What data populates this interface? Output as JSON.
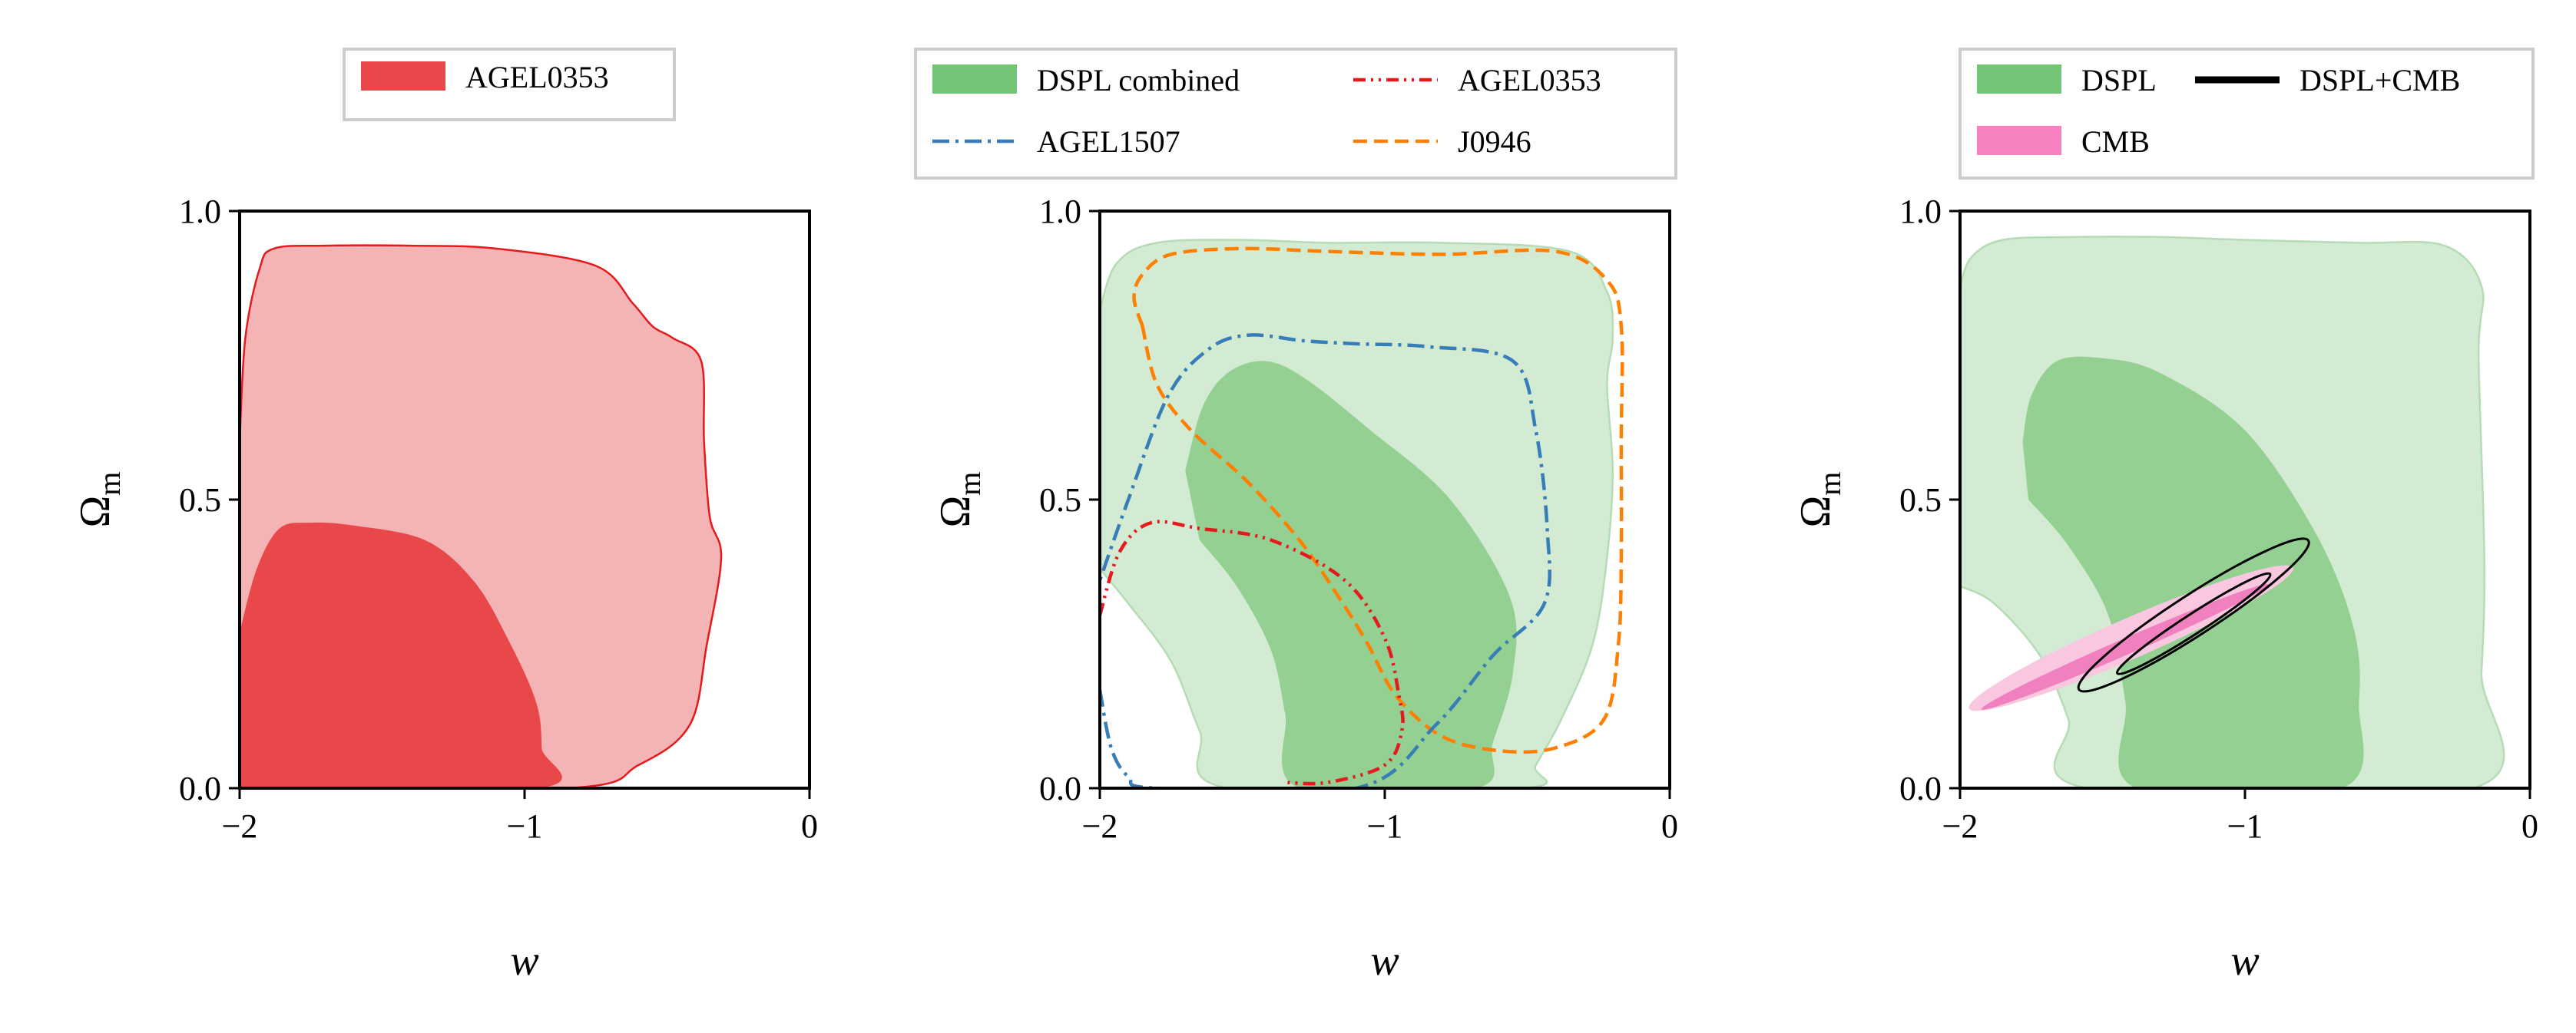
{
  "figure": {
    "type": "contour",
    "panels_count": 3
  },
  "colors": {
    "red_light": "#f4b3b5",
    "red_dark": "#e9484b",
    "red_line": "#e41a1c",
    "green_light": "#d2ebd2",
    "green_dark": "#94d092",
    "green_patch": "#74c476",
    "blue_line": "#377eb8",
    "orange_line": "#ff7f00",
    "pink_light": "#f9c8e0",
    "pink_dark": "#f180be",
    "pink_patch": "#f781bf",
    "black": "#000000",
    "legend_border": "#cccccc"
  },
  "chart_data": [
    {
      "type": "contour",
      "xlabel": "w",
      "ylabel_main": "Ω",
      "ylabel_sub": "m",
      "xlim": [
        -2,
        0
      ],
      "ylim": [
        0,
        1
      ],
      "xticks": [
        "−2",
        "−1",
        "0"
      ],
      "yticks": [
        "0.0",
        "0.5",
        "1.0"
      ],
      "legend": [
        {
          "label": "AGEL0353",
          "style": "patch",
          "color": "red_dark"
        }
      ],
      "regions": [
        {
          "name": "agel0353-95",
          "fill": "red_light",
          "stroke": "red_line",
          "points": [
            [
              -2,
              0.6
            ],
            [
              -1.98,
              0.78
            ],
            [
              -1.93,
              0.9
            ],
            [
              -1.88,
              0.935
            ],
            [
              -1.7,
              0.94
            ],
            [
              -1.4,
              0.94
            ],
            [
              -1.1,
              0.935
            ],
            [
              -0.75,
              0.905
            ],
            [
              -0.62,
              0.84
            ],
            [
              -0.55,
              0.8
            ],
            [
              -0.48,
              0.78
            ],
            [
              -0.38,
              0.74
            ],
            [
              -0.37,
              0.6
            ],
            [
              -0.35,
              0.47
            ],
            [
              -0.31,
              0.4
            ],
            [
              -0.36,
              0.25
            ],
            [
              -0.42,
              0.11
            ],
            [
              -0.6,
              0.04
            ],
            [
              -0.85,
              0
            ],
            [
              -2,
              0
            ]
          ]
        },
        {
          "name": "agel0353-68",
          "fill": "red_dark",
          "stroke": "none",
          "points": [
            [
              -2,
              0.27
            ],
            [
              -1.94,
              0.38
            ],
            [
              -1.86,
              0.45
            ],
            [
              -1.75,
              0.46
            ],
            [
              -1.6,
              0.455
            ],
            [
              -1.35,
              0.43
            ],
            [
              -1.18,
              0.36
            ],
            [
              -1.06,
              0.26
            ],
            [
              -0.96,
              0.15
            ],
            [
              -0.94,
              0.07
            ],
            [
              -0.95,
              0
            ],
            [
              -2,
              0
            ]
          ]
        }
      ],
      "lines": []
    },
    {
      "type": "contour",
      "xlabel": "w",
      "ylabel_main": "Ω",
      "ylabel_sub": "m",
      "xlim": [
        -2,
        0
      ],
      "ylim": [
        0,
        1
      ],
      "xticks": [
        "−2",
        "−1",
        "0"
      ],
      "yticks": [
        "0.0",
        "0.5",
        "1.0"
      ],
      "legend": [
        {
          "label": "DSPL combined",
          "style": "patch",
          "color": "green_patch"
        },
        {
          "label": "AGEL1507",
          "style": "dashdot",
          "color": "blue_line"
        },
        {
          "label": "AGEL0353",
          "style": "dashdotdot",
          "color": "red_line"
        },
        {
          "label": "J0946",
          "style": "dashed",
          "color": "orange_line"
        }
      ],
      "regions": [
        {
          "name": "dspl-combined-95",
          "fill": "green_light",
          "stroke": "#b5dcb4",
          "points": [
            [
              -2,
              0.83
            ],
            [
              -1.94,
              0.91
            ],
            [
              -1.8,
              0.945
            ],
            [
              -1.5,
              0.95
            ],
            [
              -1.2,
              0.945
            ],
            [
              -0.8,
              0.945
            ],
            [
              -0.35,
              0.93
            ],
            [
              -0.22,
              0.86
            ],
            [
              -0.2,
              0.78
            ],
            [
              -0.22,
              0.7
            ],
            [
              -0.2,
              0.55
            ],
            [
              -0.22,
              0.4
            ],
            [
              -0.27,
              0.25
            ],
            [
              -0.38,
              0.12
            ],
            [
              -0.47,
              0.04
            ],
            [
              -0.52,
              0
            ],
            [
              -1.55,
              0
            ],
            [
              -1.65,
              0.1
            ],
            [
              -1.75,
              0.22
            ],
            [
              -1.9,
              0.32
            ],
            [
              -2,
              0.38
            ]
          ]
        },
        {
          "name": "dspl-combined-68",
          "fill": "green_dark",
          "stroke": "none",
          "points": [
            [
              -1.7,
              0.55
            ],
            [
              -1.64,
              0.66
            ],
            [
              -1.55,
              0.72
            ],
            [
              -1.42,
              0.74
            ],
            [
              -1.28,
              0.71
            ],
            [
              -1.05,
              0.62
            ],
            [
              -0.77,
              0.5
            ],
            [
              -0.56,
              0.33
            ],
            [
              -0.55,
              0.2
            ],
            [
              -0.62,
              0.08
            ],
            [
              -0.68,
              0
            ],
            [
              -1.3,
              0
            ],
            [
              -1.35,
              0.13
            ],
            [
              -1.4,
              0.24
            ],
            [
              -1.52,
              0.35
            ],
            [
              -1.65,
              0.43
            ]
          ]
        }
      ],
      "lines": [
        {
          "name": "j0946-contour",
          "color": "orange_line",
          "dash": "dashed",
          "points": [
            [
              -1.85,
              0.8
            ],
            [
              -1.88,
              0.85
            ],
            [
              -1.85,
              0.89
            ],
            [
              -1.75,
              0.925
            ],
            [
              -1.5,
              0.935
            ],
            [
              -1.2,
              0.93
            ],
            [
              -0.8,
              0.925
            ],
            [
              -0.4,
              0.93
            ],
            [
              -0.22,
              0.88
            ],
            [
              -0.17,
              0.8
            ],
            [
              -0.17,
              0.6
            ],
            [
              -0.17,
              0.4
            ],
            [
              -0.18,
              0.25
            ],
            [
              -0.23,
              0.12
            ],
            [
              -0.4,
              0.07
            ],
            [
              -0.6,
              0.065
            ],
            [
              -0.8,
              0.09
            ],
            [
              -0.96,
              0.16
            ],
            [
              -1.06,
              0.25
            ],
            [
              -1.16,
              0.33
            ],
            [
              -1.3,
              0.43
            ],
            [
              -1.48,
              0.53
            ],
            [
              -1.68,
              0.62
            ],
            [
              -1.8,
              0.7
            ],
            [
              -1.85,
              0.8
            ]
          ]
        },
        {
          "name": "agel1507-contour",
          "color": "blue_line",
          "dash": "dashdot",
          "points": [
            [
              -2,
              0.17
            ],
            [
              -1.96,
              0.07
            ],
            [
              -1.9,
              0.02
            ],
            [
              -1.8,
              0
            ],
            [
              -1.1,
              0
            ],
            [
              -0.82,
              0.11
            ],
            [
              -0.62,
              0.23
            ],
            [
              -0.44,
              0.32
            ],
            [
              -0.43,
              0.45
            ],
            [
              -0.47,
              0.62
            ],
            [
              -0.55,
              0.74
            ],
            [
              -0.85,
              0.765
            ],
            [
              -1.1,
              0.77
            ],
            [
              -1.28,
              0.775
            ],
            [
              -1.48,
              0.785
            ],
            [
              -1.62,
              0.76
            ],
            [
              -1.76,
              0.68
            ],
            [
              -1.9,
              0.5
            ],
            [
              -2,
              0.36
            ]
          ]
        },
        {
          "name": "agel0353-contour",
          "color": "red_line",
          "dash": "dashdotdot",
          "points": [
            [
              -2,
              0.3
            ],
            [
              -1.93,
              0.41
            ],
            [
              -1.82,
              0.46
            ],
            [
              -1.65,
              0.45
            ],
            [
              -1.4,
              0.43
            ],
            [
              -1.14,
              0.36
            ],
            [
              -1.0,
              0.26
            ],
            [
              -0.95,
              0.16
            ],
            [
              -0.94,
              0.1
            ],
            [
              -1.0,
              0.04
            ],
            [
              -1.2,
              0.01
            ],
            [
              -1.35,
              0.01
            ]
          ]
        }
      ]
    },
    {
      "type": "contour",
      "xlabel": "w",
      "ylabel_main": "Ω",
      "ylabel_sub": "m",
      "xlim": [
        -2,
        0
      ],
      "ylim": [
        0,
        1
      ],
      "xticks": [
        "−2",
        "−1",
        "0"
      ],
      "yticks": [
        "0.0",
        "0.5",
        "1.0"
      ],
      "legend": [
        {
          "label": "DSPL",
          "style": "patch",
          "color": "green_patch"
        },
        {
          "label": "DSPL+CMB",
          "style": "solid",
          "color": "black"
        },
        {
          "label": "CMB",
          "style": "patch",
          "color": "pink_patch"
        }
      ],
      "regions": [
        {
          "name": "dspl-95",
          "fill": "green_light",
          "stroke": "#b5dcb4",
          "points": [
            [
              -2,
              0.87
            ],
            [
              -1.96,
              0.92
            ],
            [
              -1.85,
              0.95
            ],
            [
              -1.6,
              0.955
            ],
            [
              -1.3,
              0.955
            ],
            [
              -1.0,
              0.95
            ],
            [
              -0.6,
              0.945
            ],
            [
              -0.3,
              0.94
            ],
            [
              -0.17,
              0.87
            ],
            [
              -0.18,
              0.75
            ],
            [
              -0.16,
              0.4
            ],
            [
              -0.17,
              0.2
            ],
            [
              -0.2,
              0
            ],
            [
              -1.55,
              0
            ],
            [
              -1.62,
              0.12
            ],
            [
              -1.72,
              0.23
            ],
            [
              -1.88,
              0.32
            ],
            [
              -2,
              0.35
            ]
          ]
        },
        {
          "name": "dspl-68",
          "fill": "green_dark",
          "stroke": "none",
          "points": [
            [
              -1.78,
              0.6
            ],
            [
              -1.75,
              0.68
            ],
            [
              -1.66,
              0.74
            ],
            [
              -1.5,
              0.745
            ],
            [
              -1.3,
              0.72
            ],
            [
              -1.0,
              0.62
            ],
            [
              -0.75,
              0.44
            ],
            [
              -0.62,
              0.28
            ],
            [
              -0.6,
              0.15
            ],
            [
              -0.66,
              0
            ],
            [
              -1.38,
              0
            ],
            [
              -1.42,
              0.15
            ],
            [
              -1.48,
              0.3
            ],
            [
              -1.62,
              0.42
            ],
            [
              -1.76,
              0.5
            ]
          ]
        },
        {
          "name": "cmb-95",
          "fill": "pink_light",
          "stroke": "none",
          "ellipse": {
            "cx": -1.4,
            "cy": 0.26,
            "rx": 0.62,
            "ry": 0.035,
            "angle_deg": -23.5
          }
        },
        {
          "name": "cmb-68",
          "fill": "pink_dark",
          "stroke": "none",
          "ellipse": {
            "cx": -1.42,
            "cy": 0.245,
            "rx": 0.55,
            "ry": 0.014,
            "angle_deg": -23.5
          }
        }
      ],
      "lines": [
        {
          "name": "dspl-cmb-95",
          "color": "black",
          "dash": "solid",
          "ellipse": {
            "cx": -1.18,
            "cy": 0.3,
            "rx": 0.48,
            "ry": 0.035,
            "angle_deg": -33
          }
        },
        {
          "name": "dspl-cmb-68",
          "color": "black",
          "dash": "solid",
          "ellipse": {
            "cx": -1.18,
            "cy": 0.285,
            "rx": 0.32,
            "ry": 0.017,
            "angle_deg": -33
          }
        }
      ]
    }
  ]
}
